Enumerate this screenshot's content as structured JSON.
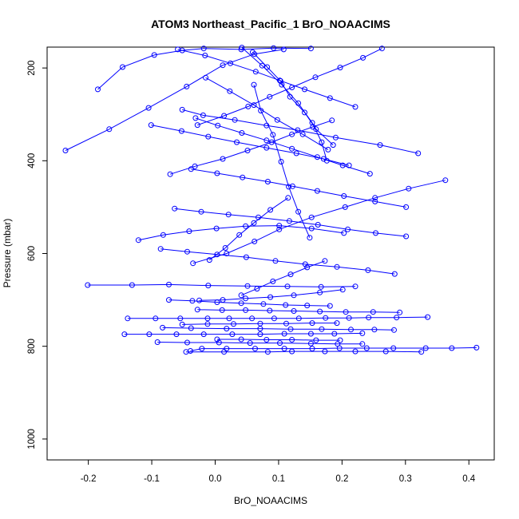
{
  "chart_data": {
    "type": "line",
    "title": "ATOM3 Northeast_Pacific_1 BrO_NOAACIMS",
    "xlabel": "BrO_NOAACIMS",
    "ylabel": "Pressure (mbar)",
    "xlim": [
      -0.265,
      0.44
    ],
    "ylim": [
      1045,
      155
    ],
    "y_reversed": true,
    "xticks": [
      -0.2,
      -0.1,
      0.0,
      0.1,
      0.2,
      0.3,
      0.4
    ],
    "xtick_labels": [
      "-0.2",
      "-0.1",
      "0.0",
      "0.1",
      "0.2",
      "0.3",
      "0.4"
    ],
    "yticks": [
      200,
      400,
      600,
      800,
      1000
    ],
    "ytick_labels": [
      "200",
      "400",
      "600",
      "800",
      "1000"
    ],
    "grid": false,
    "legend": "none",
    "series_color": "#0000ff",
    "marker": "open-circle",
    "series": [
      {
        "x": [
          0.412,
          0.373,
          0.332,
          0.281,
          0.239,
          0.196,
          0.153,
          0.109,
          0.063,
          0.018,
          -0.021,
          -0.039
        ],
        "y": [
          803,
          804,
          804,
          804,
          804,
          804,
          805,
          805,
          805,
          805,
          805,
          810
        ]
      },
      {
        "x": [
          0.335,
          0.286,
          0.242,
          0.211,
          0.174,
          0.132,
          0.093,
          0.058,
          0.022,
          -0.012,
          -0.055,
          -0.094,
          -0.138
        ],
        "y": [
          737,
          738,
          738,
          739,
          739,
          740,
          740,
          740,
          740,
          740,
          740,
          740,
          740
        ]
      },
      {
        "x": [
          0.232,
          0.188,
          0.151,
          0.109,
          0.071,
          0.027,
          -0.018,
          -0.061,
          -0.104,
          -0.143
        ],
        "y": [
          772,
          773,
          773,
          773,
          774,
          774,
          774,
          774,
          774,
          774
        ]
      },
      {
        "x": [
          -0.201,
          -0.131,
          -0.073,
          -0.011,
          0.051,
          0.114,
          0.167,
          0.221
        ],
        "y": [
          668,
          668,
          667,
          669,
          670,
          671,
          672,
          671
        ]
      },
      {
        "x": [
          -0.083,
          -0.038,
          0.018,
          0.071,
          0.119,
          0.168,
          0.214,
          0.251,
          0.282
        ],
        "y": [
          760,
          761,
          762,
          762,
          763,
          763,
          764,
          764,
          765
        ]
      },
      {
        "x": [
          -0.091,
          -0.044,
          0.006,
          0.055,
          0.102,
          0.151,
          0.193,
          0.232
        ],
        "y": [
          791,
          792,
          792,
          793,
          793,
          794,
          795,
          795
        ]
      },
      {
        "x": [
          -0.046,
          0.014,
          0.083,
          0.121,
          0.173,
          0.221,
          0.269,
          0.325
        ],
        "y": [
          812,
          812,
          812,
          811,
          811,
          811,
          811,
          812
        ]
      },
      {
        "x": [
          -0.236,
          -0.167,
          -0.105,
          -0.045,
          0.012,
          0.062,
          0.108
        ],
        "y": [
          378,
          332,
          286,
          240,
          194,
          170,
          160
        ]
      },
      {
        "x": [
          -0.185,
          -0.146,
          -0.096,
          -0.052,
          -0.018,
          0.041,
          0.092,
          0.151
        ],
        "y": [
          246,
          198,
          172,
          162,
          158,
          160,
          157,
          158
        ]
      },
      {
        "x": [
          0.32,
          0.26,
          0.19,
          0.13,
          0.081,
          0.031,
          -0.019,
          -0.052
        ],
        "y": [
          384,
          366,
          350,
          334,
          324,
          312,
          302,
          290
        ]
      },
      {
        "x": [
          0.363,
          0.305,
          0.252,
          0.205,
          0.152,
          0.101,
          0.062,
          0.018,
          -0.035
        ],
        "y": [
          442,
          460,
          480,
          500,
          522,
          548,
          574,
          600,
          621
        ]
      },
      {
        "x": [
          -0.121,
          -0.082,
          -0.041,
          0.002,
          0.048,
          0.101,
          0.152,
          0.203
        ],
        "y": [
          571,
          560,
          552,
          546,
          541,
          540,
          546,
          556
        ]
      },
      {
        "x": [
          0.283,
          0.241,
          0.192,
          0.142,
          0.095,
          0.049,
          0.003,
          -0.044,
          -0.086
        ],
        "y": [
          644,
          636,
          629,
          623,
          616,
          608,
          602,
          596,
          590
        ]
      },
      {
        "x": [
          -0.064,
          -0.022,
          0.021,
          0.068,
          0.117,
          0.162,
          0.209,
          0.253,
          0.301
        ],
        "y": [
          503,
          510,
          516,
          522,
          530,
          538,
          548,
          556,
          563
        ]
      },
      {
        "x": [
          -0.101,
          -0.053,
          -0.011,
          0.034,
          0.081,
          0.128,
          0.171,
          0.211
        ],
        "y": [
          323,
          336,
          348,
          360,
          372,
          384,
          396,
          410
        ]
      },
      {
        "x": [
          0.221,
          0.181,
          0.141,
          0.102,
          0.064,
          0.024,
          -0.016,
          -0.059
        ],
        "y": [
          284,
          265,
          246,
          227,
          208,
          190,
          173,
          160
        ]
      },
      {
        "x": [
          0.263,
          0.233,
          0.197,
          0.158,
          0.121,
          0.086,
          0.052,
          0.014,
          -0.028
        ],
        "y": [
          158,
          178,
          199,
          220,
          242,
          262,
          283,
          303,
          323
        ]
      },
      {
        "x": [
          0.042,
          0.074,
          0.105,
          0.131,
          0.153,
          0.168,
          0.176
        ],
        "y": [
          156,
          195,
          236,
          276,
          318,
          360,
          400
        ]
      },
      {
        "x": [
          -0.071,
          -0.032,
          0.012,
          0.051,
          0.089,
          0.121,
          0.154,
          0.184
        ],
        "y": [
          429,
          412,
          396,
          378,
          360,
          343,
          327,
          313
        ]
      },
      {
        "x": [
          0.301,
          0.252,
          0.203,
          0.161,
          0.122,
          0.083,
          0.043,
          0.003,
          -0.038
        ],
        "y": [
          500,
          488,
          476,
          465,
          455,
          445,
          436,
          427,
          418
        ]
      },
      {
        "x": [
          -0.015,
          0.023,
          0.061,
          0.098,
          0.138,
          0.178
        ],
        "y": [
          221,
          250,
          280,
          312,
          343,
          376
        ]
      },
      {
        "x": [
          0.244,
          0.201,
          0.161,
          0.121,
          0.081,
          0.042,
          0.004,
          -0.031
        ],
        "y": [
          428,
          410,
          392,
          374,
          356,
          340,
          324,
          308
        ]
      },
      {
        "x": [
          0.059,
          0.082,
          0.103,
          0.118,
          0.141,
          0.159,
          0.186
        ],
        "y": [
          166,
          198,
          228,
          262,
          296,
          332,
          366
        ]
      },
      {
        "x": [
          -0.025,
          0.012,
          0.048,
          0.087,
          0.124,
          0.165,
          0.201
        ],
        "y": [
          701,
          700,
          697,
          694,
          690,
          684,
          678
        ]
      },
      {
        "x": [
          0.181,
          0.145,
          0.111,
          0.076,
          0.041,
          0.003,
          -0.036,
          -0.073
        ],
        "y": [
          713,
          712,
          711,
          709,
          707,
          705,
          702,
          700
        ]
      },
      {
        "x": [
          0.291,
          0.249,
          0.206,
          0.165,
          0.124,
          0.086,
          0.048,
          0.011,
          -0.028
        ],
        "y": [
          727,
          726,
          726,
          725,
          724,
          723,
          722,
          722,
          721
        ]
      },
      {
        "x": [
          -0.052,
          -0.012,
          0.029,
          0.071,
          0.112,
          0.153,
          0.192
        ],
        "y": [
          753,
          752,
          752,
          751,
          751,
          750,
          750
        ]
      },
      {
        "x": [
          0.003,
          0.041,
          0.081,
          0.121,
          0.159,
          0.197
        ],
        "y": [
          785,
          785,
          786,
          786,
          787,
          787
        ]
      },
      {
        "x": [
          0.115,
          0.087,
          0.061,
          0.038,
          0.016,
          -0.009
        ],
        "y": [
          480,
          506,
          534,
          560,
          588,
          614
        ]
      },
      {
        "x": [
          0.173,
          0.145,
          0.119,
          0.091,
          0.066,
          0.041
        ],
        "y": [
          616,
          630,
          645,
          660,
          676,
          690
        ]
      },
      {
        "x": [
          0.061,
          0.072,
          0.091,
          0.104,
          0.116,
          0.131,
          0.149
        ],
        "y": [
          236,
          292,
          344,
          402,
          456,
          510,
          566
        ]
      }
    ]
  }
}
